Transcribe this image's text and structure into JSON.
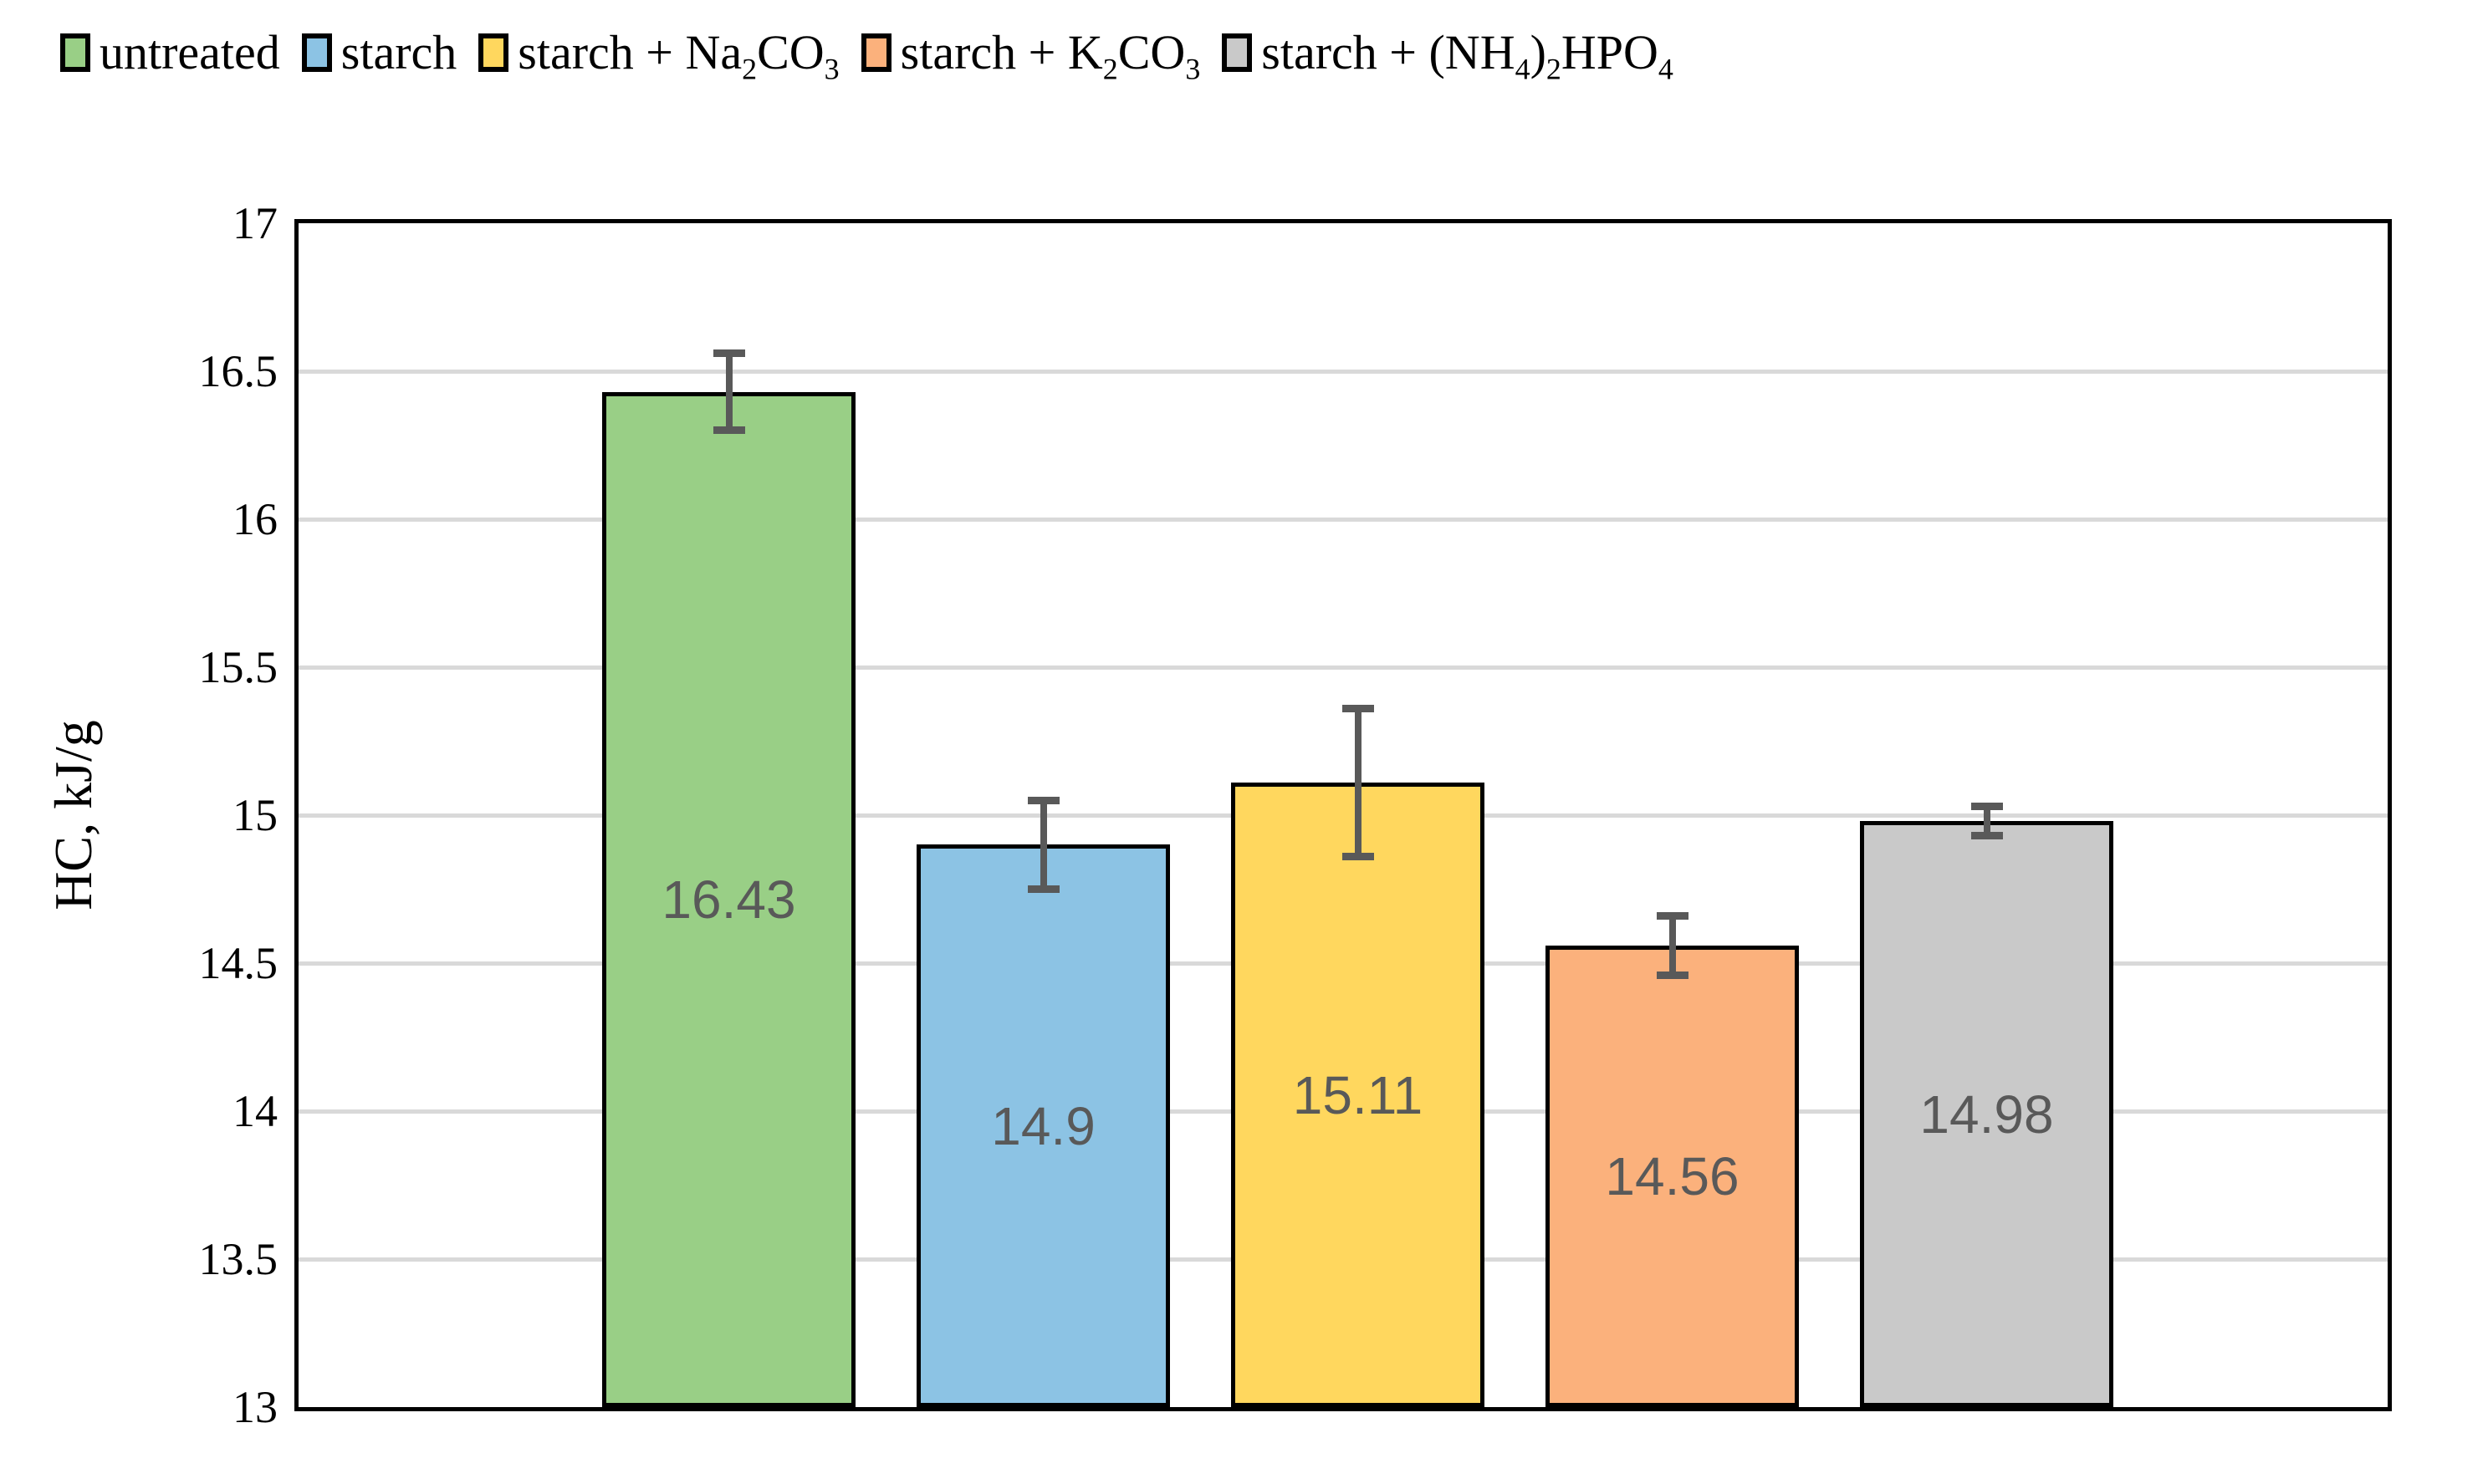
{
  "legend": {
    "items": [
      {
        "label": "untreated",
        "color": "#99CF86",
        "segments": [
          [
            "untreated",
            false
          ]
        ]
      },
      {
        "label": "starch",
        "color": "#8CC3E4",
        "segments": [
          [
            "starch",
            false
          ]
        ]
      },
      {
        "label": "starch + Na2CO3",
        "color": "#FFD75E",
        "segments": [
          [
            "starch + Na",
            false
          ],
          [
            "2",
            true
          ],
          [
            "CO",
            false
          ],
          [
            "3",
            true
          ]
        ]
      },
      {
        "label": "starch + K2CO3",
        "color": "#FBB17C",
        "segments": [
          [
            "starch + K",
            false
          ],
          [
            "2",
            true
          ],
          [
            "CO",
            false
          ],
          [
            "3",
            true
          ]
        ]
      },
      {
        "label": "starch + (NH4)2HPO4",
        "color": "#C9C9C9",
        "segments": [
          [
            "starch + (NH",
            false
          ],
          [
            "4",
            true
          ],
          [
            ")",
            false
          ],
          [
            "2",
            true
          ],
          [
            "HPO",
            false
          ],
          [
            "4",
            true
          ]
        ]
      }
    ]
  },
  "y_axis": {
    "title": "HC, kJ/g",
    "ticks": [
      "13",
      "13.5",
      "14",
      "14.5",
      "15",
      "15.5",
      "16",
      "16.5",
      "17"
    ]
  },
  "chart_data": {
    "type": "bar",
    "title": "",
    "xlabel": "",
    "ylabel": "HC, kJ/g",
    "ylim": [
      13,
      17
    ],
    "ytick_step": 0.5,
    "grid": true,
    "legend_position": "top",
    "categories": [
      "untreated",
      "starch",
      "starch + Na2CO3",
      "starch + K2CO3",
      "starch + (NH4)2HPO4"
    ],
    "values": [
      16.43,
      14.9,
      15.11,
      14.56,
      14.98
    ],
    "value_labels": [
      "16.43",
      "14.9",
      "15.11",
      "14.56",
      "14.98"
    ],
    "errors": [
      0.13,
      0.15,
      0.25,
      0.1,
      0.05
    ],
    "colors": [
      "#99CF86",
      "#8CC3E4",
      "#FFD75E",
      "#FBB17C",
      "#C9C9C9"
    ]
  },
  "style_colors": {
    "bar_border": "#000000",
    "error_bar": "#595959",
    "data_label": "#595959",
    "gridline": "#D9D9D9",
    "axis_frame": "#000000"
  }
}
